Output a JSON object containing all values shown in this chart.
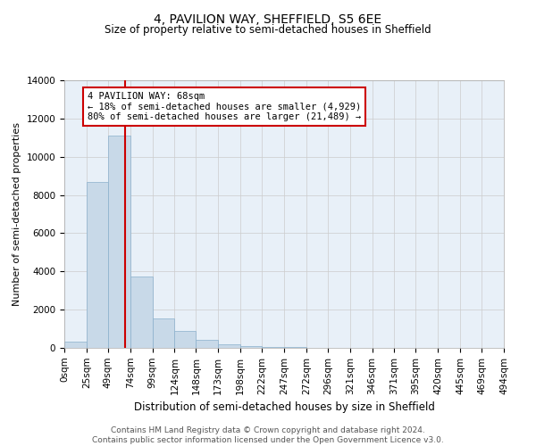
{
  "title": "4, PAVILION WAY, SHEFFIELD, S5 6EE",
  "subtitle": "Size of property relative to semi-detached houses in Sheffield",
  "xlabel": "Distribution of semi-detached houses by size in Sheffield",
  "ylabel": "Number of semi-detached properties",
  "footer_line1": "Contains HM Land Registry data © Crown copyright and database right 2024.",
  "footer_line2": "Contains public sector information licensed under the Open Government Licence v3.0.",
  "bin_labels": [
    "0sqm",
    "25sqm",
    "49sqm",
    "74sqm",
    "99sqm",
    "124sqm",
    "148sqm",
    "173sqm",
    "198sqm",
    "222sqm",
    "247sqm",
    "272sqm",
    "296sqm",
    "321sqm",
    "346sqm",
    "371sqm",
    "395sqm",
    "420sqm",
    "445sqm",
    "469sqm",
    "494sqm"
  ],
  "bar_values": [
    350,
    8700,
    11100,
    3750,
    1550,
    900,
    420,
    200,
    100,
    60,
    30,
    20,
    10,
    5,
    0,
    0,
    0,
    0,
    0,
    0
  ],
  "bin_edges": [
    0,
    25,
    49,
    74,
    99,
    124,
    148,
    173,
    198,
    222,
    247,
    272,
    296,
    321,
    346,
    371,
    395,
    420,
    445,
    469,
    494
  ],
  "property_size": 68,
  "property_label": "4 PAVILION WAY: 68sqm",
  "pct_smaller": 18,
  "pct_larger": 80,
  "count_smaller": 4929,
  "count_larger": 21489,
  "bar_color": "#c8d9e8",
  "bar_edge_color": "#8ab0cc",
  "vline_color": "#cc0000",
  "annotation_box_edge": "#cc0000",
  "ylim": [
    0,
    14000
  ],
  "yticks": [
    0,
    2000,
    4000,
    6000,
    8000,
    10000,
    12000,
    14000
  ],
  "background_color": "#ffffff",
  "grid_color": "#cccccc",
  "title_fontsize": 10,
  "subtitle_fontsize": 8.5,
  "ylabel_fontsize": 8,
  "xlabel_fontsize": 8.5,
  "tick_fontsize": 7.5,
  "ann_fontsize": 7.5,
  "footer_fontsize": 6.5
}
